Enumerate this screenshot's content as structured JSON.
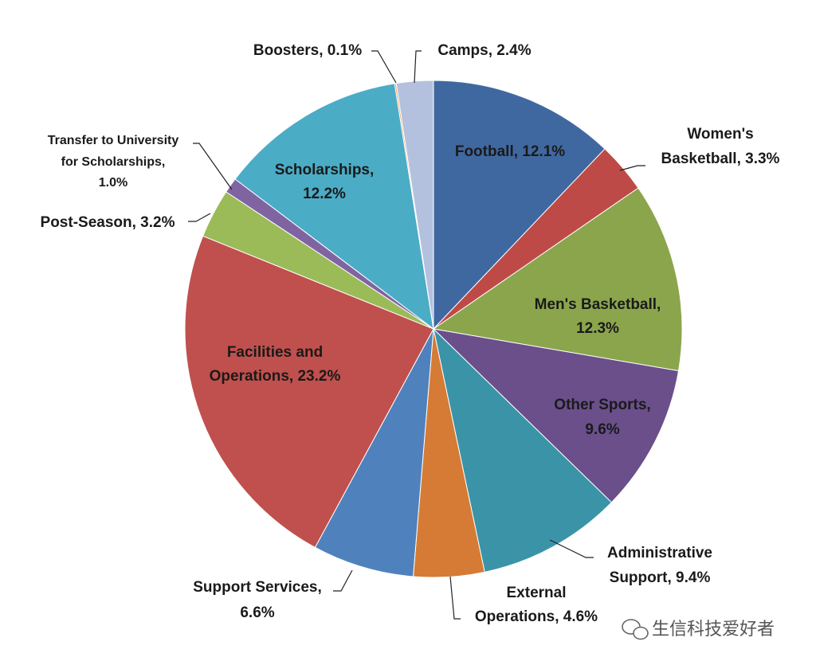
{
  "chart_data": {
    "type": "pie",
    "title": "",
    "start": "top",
    "direction": "clockwise",
    "slices": [
      {
        "name": "Football",
        "label": [
          "Football, 12.1%"
        ],
        "value": 12.1,
        "color": "#4068a0"
      },
      {
        "name": "Women's Basketball",
        "label": [
          "Women's",
          "Basketball,  3.3%"
        ],
        "value": 3.3,
        "color": "#be4a47"
      },
      {
        "name": "Men's Basketball",
        "label": [
          "Men's Basketball,",
          "12.3%"
        ],
        "value": 12.3,
        "color": "#8ba54c"
      },
      {
        "name": "Other Sports",
        "label": [
          "Other Sports,",
          "9.6%"
        ],
        "value": 9.6,
        "color": "#6a4f8b"
      },
      {
        "name": "Administrative Support",
        "label": [
          "Administrative",
          "Support,  9.4%"
        ],
        "value": 9.4,
        "color": "#3b93a7"
      },
      {
        "name": "External Operations",
        "label": [
          "External",
          "Operations, 4.6%"
        ],
        "value": 4.6,
        "color": "#d57b35"
      },
      {
        "name": "Support Services",
        "label": [
          "Support Services,",
          "6.6%"
        ],
        "value": 6.6,
        "color": "#4f81bd"
      },
      {
        "name": "Facilities and Operations",
        "label": [
          "Facilities and",
          "Operations, 23.2%"
        ],
        "value": 23.2,
        "color": "#c0504d"
      },
      {
        "name": "Post-Season",
        "label": [
          "Post-Season,  3.2%"
        ],
        "value": 3.2,
        "color": "#9bbb59"
      },
      {
        "name": "Transfer to University for Scholarships",
        "label": [
          "Transfer to University",
          "for Scholarships,",
          "1.0%"
        ],
        "value": 1.0,
        "color": "#8064a2"
      },
      {
        "name": "Scholarships",
        "label": [
          "Scholarships,",
          "12.2%"
        ],
        "value": 12.2,
        "color": "#4bacc6"
      },
      {
        "name": "Boosters",
        "label": [
          "Boosters, 0.1%"
        ],
        "value": 0.1,
        "color": "#f79646"
      },
      {
        "name": "Camps",
        "label": [
          "Camps, 2.4%"
        ],
        "value": 2.4,
        "color": "#b4c1de"
      }
    ]
  },
  "watermark": {
    "text": "生信科技爱好者"
  }
}
